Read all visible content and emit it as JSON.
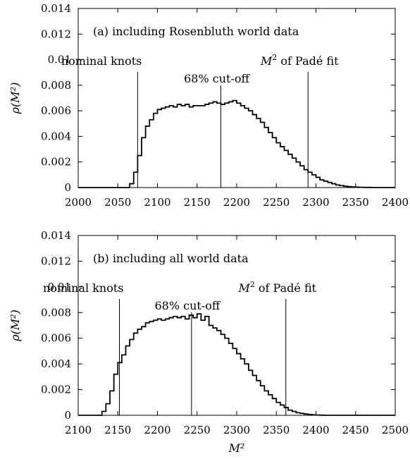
{
  "chart_data": [
    {
      "type": "histogram",
      "title": "(a) including Rosenbluth world data",
      "xlabel": "",
      "ylabel": "ρ(M²)",
      "xlim": [
        2000,
        2400
      ],
      "ylim": [
        0,
        0.014
      ],
      "x_ticks": [
        "2000",
        "2050",
        "2100",
        "2150",
        "2200",
        "2250",
        "2300",
        "2350",
        "2400"
      ],
      "y_ticks": [
        "0",
        "0.002",
        "0.004",
        "0.006",
        "0.008",
        "0.01",
        "0.012",
        "0.014"
      ],
      "bin_start": 2000,
      "bin_width": 5,
      "values": [
        0,
        0,
        0,
        0,
        0,
        0,
        0,
        0,
        0,
        0,
        0,
        0,
        0,
        0.0003,
        0.0012,
        0.0025,
        0.0039,
        0.0048,
        0.0053,
        0.0058,
        0.0061,
        0.0062,
        0.0063,
        0.0064,
        0.0063,
        0.0065,
        0.0064,
        0.0065,
        0.0063,
        0.0064,
        0.0064,
        0.0064,
        0.0065,
        0.0066,
        0.0067,
        0.0066,
        0.0065,
        0.0066,
        0.0067,
        0.0068,
        0.0066,
        0.0064,
        0.0062,
        0.006,
        0.0057,
        0.0054,
        0.0051,
        0.0047,
        0.0043,
        0.0039,
        0.0035,
        0.0032,
        0.0029,
        0.0026,
        0.0023,
        0.002,
        0.0017,
        0.0014,
        0.0012,
        0.001,
        0.0008,
        0.0006,
        0.0005,
        0.0004,
        0.0003,
        0.0002,
        0.00015,
        0.0001,
        7e-05,
        5e-05,
        3e-05,
        2e-05,
        1e-05,
        1e-05,
        0,
        0,
        0,
        0,
        0,
        0
      ],
      "vlines": [
        {
          "label": "nominal knots",
          "x": 2075
        },
        {
          "label": "68% cut-off",
          "x": 2180
        },
        {
          "label": "of Padé fit",
          "x": 2290
        }
      ]
    },
    {
      "type": "histogram",
      "title": "(b) including all world data",
      "xlabel": "M²",
      "ylabel": "ρ(M²)",
      "xlim": [
        2100,
        2500
      ],
      "ylim": [
        0,
        0.014
      ],
      "x_ticks": [
        "2100",
        "2150",
        "2200",
        "2250",
        "2300",
        "2350",
        "2400",
        "2450",
        "2500"
      ],
      "y_ticks": [
        "0",
        "0.002",
        "0.004",
        "0.006",
        "0.008",
        "0.01",
        "0.012",
        "0.014"
      ],
      "bin_start": 2100,
      "bin_width": 5,
      "values": [
        0,
        0,
        0,
        0,
        0,
        0,
        0.0003,
        0.0009,
        0.0019,
        0.0032,
        0.0041,
        0.0047,
        0.0054,
        0.0059,
        0.0064,
        0.0067,
        0.0069,
        0.0072,
        0.0073,
        0.0074,
        0.0075,
        0.0074,
        0.0075,
        0.0076,
        0.0077,
        0.0076,
        0.0077,
        0.0075,
        0.0078,
        0.0076,
        0.0079,
        0.0074,
        0.0077,
        0.007,
        0.0068,
        0.0066,
        0.0063,
        0.006,
        0.0056,
        0.0052,
        0.0048,
        0.0044,
        0.004,
        0.0035,
        0.0031,
        0.0027,
        0.0023,
        0.0019,
        0.0016,
        0.0013,
        0.001,
        0.0008,
        0.0006,
        0.0004,
        0.0003,
        0.0002,
        0.00015,
        0.0001,
        6e-05,
        3e-05,
        2e-05,
        1e-05,
        0,
        0,
        0,
        0,
        0,
        0,
        0,
        0,
        0,
        0,
        0,
        0,
        0,
        0,
        0,
        0,
        0,
        0
      ],
      "vlines": [
        {
          "label": "nominal knots",
          "x": 2152
        },
        {
          "label": "68% cut-off",
          "x": 2243
        },
        {
          "label": "of Padé fit",
          "x": 2362
        }
      ]
    }
  ]
}
